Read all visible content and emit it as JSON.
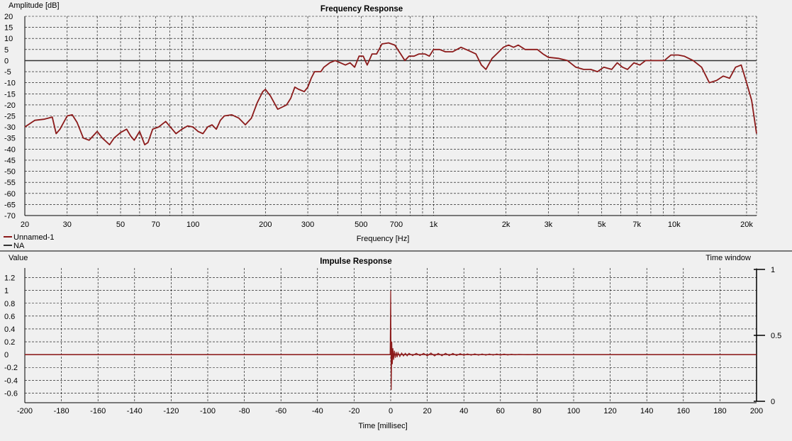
{
  "colors": {
    "background": "#f0f0f0",
    "series": "#8b1a1a",
    "grid": "#000000",
    "zero_line": "#333333"
  },
  "chart_data": [
    {
      "id": "frequency",
      "type": "line",
      "title": "Frequency Response",
      "xlabel": "Frequency [Hz]",
      "ylabel": "Amplitude [dB]",
      "x_scale": "log",
      "xlim": [
        20,
        22000
      ],
      "ylim": [
        -70,
        20
      ],
      "grid": true,
      "legend": {
        "placement": "bottom-left",
        "entries": [
          {
            "name": "Unnamed-1",
            "color": "#8b1a1a"
          },
          {
            "name": "NA",
            "color": "#333333"
          }
        ]
      },
      "x_ticks": [
        {
          "value": 20,
          "label": "20"
        },
        {
          "value": 30,
          "label": "30"
        },
        {
          "value": 50,
          "label": "50"
        },
        {
          "value": 70,
          "label": "70"
        },
        {
          "value": 100,
          "label": "100"
        },
        {
          "value": 200,
          "label": "200"
        },
        {
          "value": 300,
          "label": "300"
        },
        {
          "value": 500,
          "label": "500"
        },
        {
          "value": 700,
          "label": "700"
        },
        {
          "value": 1000,
          "label": "1k"
        },
        {
          "value": 2000,
          "label": "2k"
        },
        {
          "value": 3000,
          "label": "3k"
        },
        {
          "value": 5000,
          "label": "5k"
        },
        {
          "value": 7000,
          "label": "7k"
        },
        {
          "value": 10000,
          "label": "10k"
        },
        {
          "value": 20000,
          "label": "20k"
        }
      ],
      "y_ticks": [
        20,
        15,
        10,
        5,
        0,
        -5,
        -10,
        -15,
        -20,
        -25,
        -30,
        -35,
        -40,
        -45,
        -50,
        -55,
        -60,
        -65,
        -70
      ],
      "reference_line": 0,
      "series": [
        {
          "name": "Unnamed-1",
          "color": "#8b1a1a",
          "points": [
            [
              20,
              -30
            ],
            [
              22,
              -27
            ],
            [
              24,
              -26.5
            ],
            [
              26,
              -25.5
            ],
            [
              27,
              -33
            ],
            [
              28,
              -31
            ],
            [
              30,
              -25
            ],
            [
              31.5,
              -24.5
            ],
            [
              33,
              -28
            ],
            [
              35,
              -35
            ],
            [
              37,
              -36
            ],
            [
              40,
              -32
            ],
            [
              42,
              -35
            ],
            [
              45,
              -38
            ],
            [
              47,
              -35
            ],
            [
              50,
              -32.5
            ],
            [
              53,
              -31
            ],
            [
              55,
              -34
            ],
            [
              57,
              -36
            ],
            [
              60,
              -32
            ],
            [
              63,
              -38
            ],
            [
              65,
              -37
            ],
            [
              68,
              -31
            ],
            [
              72,
              -30
            ],
            [
              77,
              -27.5
            ],
            [
              82,
              -31
            ],
            [
              85,
              -33
            ],
            [
              90,
              -31
            ],
            [
              95,
              -29.5
            ],
            [
              100,
              -30
            ],
            [
              105,
              -32
            ],
            [
              110,
              -33
            ],
            [
              115,
              -30
            ],
            [
              120,
              -29
            ],
            [
              125,
              -31
            ],
            [
              130,
              -27
            ],
            [
              135,
              -25
            ],
            [
              145,
              -24.5
            ],
            [
              155,
              -26
            ],
            [
              165,
              -29
            ],
            [
              175,
              -26
            ],
            [
              185,
              -19
            ],
            [
              195,
              -14
            ],
            [
              200,
              -13
            ],
            [
              210,
              -16
            ],
            [
              225,
              -22
            ],
            [
              235,
              -21
            ],
            [
              245,
              -20
            ],
            [
              255,
              -17
            ],
            [
              265,
              -12
            ],
            [
              275,
              -13
            ],
            [
              290,
              -14
            ],
            [
              300,
              -12
            ],
            [
              310,
              -8
            ],
            [
              320,
              -5
            ],
            [
              340,
              -5
            ],
            [
              350,
              -3
            ],
            [
              370,
              -1
            ],
            [
              390,
              0
            ],
            [
              410,
              -1
            ],
            [
              430,
              -2
            ],
            [
              450,
              -1
            ],
            [
              470,
              -3
            ],
            [
              490,
              2
            ],
            [
              510,
              2
            ],
            [
              530,
              -2
            ],
            [
              555,
              3
            ],
            [
              580,
              3
            ],
            [
              610,
              7.5
            ],
            [
              650,
              8
            ],
            [
              690,
              7
            ],
            [
              730,
              3
            ],
            [
              760,
              0
            ],
            [
              790,
              2
            ],
            [
              830,
              2
            ],
            [
              870,
              3
            ],
            [
              920,
              3
            ],
            [
              960,
              2
            ],
            [
              1000,
              5
            ],
            [
              1060,
              5
            ],
            [
              1120,
              4
            ],
            [
              1200,
              4
            ],
            [
              1300,
              6
            ],
            [
              1400,
              4.5
            ],
            [
              1500,
              3
            ],
            [
              1580,
              -2
            ],
            [
              1650,
              -4
            ],
            [
              1750,
              1
            ],
            [
              1850,
              3.5
            ],
            [
              1950,
              6
            ],
            [
              2050,
              7
            ],
            [
              2150,
              6
            ],
            [
              2250,
              7
            ],
            [
              2400,
              5
            ],
            [
              2550,
              5
            ],
            [
              2700,
              5
            ],
            [
              2850,
              3
            ],
            [
              3000,
              1.5
            ],
            [
              3300,
              1
            ],
            [
              3600,
              0
            ],
            [
              3900,
              -3
            ],
            [
              4200,
              -4
            ],
            [
              4500,
              -4
            ],
            [
              4800,
              -5
            ],
            [
              5100,
              -3
            ],
            [
              5500,
              -4
            ],
            [
              5800,
              -1
            ],
            [
              6100,
              -3
            ],
            [
              6400,
              -4
            ],
            [
              6800,
              -1
            ],
            [
              7200,
              -2
            ],
            [
              7600,
              0
            ],
            [
              8000,
              0
            ],
            [
              8600,
              0
            ],
            [
              9100,
              0
            ],
            [
              9700,
              2.5
            ],
            [
              10400,
              2.5
            ],
            [
              11000,
              2
            ],
            [
              12000,
              0
            ],
            [
              13000,
              -3
            ],
            [
              14000,
              -10
            ],
            [
              15000,
              -9
            ],
            [
              16000,
              -7
            ],
            [
              17000,
              -8
            ],
            [
              18000,
              -3
            ],
            [
              19000,
              -2
            ],
            [
              20000,
              -10
            ],
            [
              21000,
              -18
            ],
            [
              22000,
              -33
            ]
          ]
        }
      ]
    },
    {
      "id": "impulse",
      "type": "line",
      "title": "Impulse Response",
      "xlabel": "Time [millisec]",
      "ylabel": "Value",
      "right_label": "Time window",
      "xlim": [
        -200,
        200
      ],
      "ylim": [
        -0.75,
        1.35
      ],
      "right_ylim": [
        0,
        1
      ],
      "grid": true,
      "x_ticks": [
        -200,
        -180,
        -160,
        -140,
        -120,
        -100,
        -80,
        -60,
        -40,
        -20,
        0,
        20,
        40,
        60,
        80,
        100,
        120,
        140,
        160,
        180,
        200
      ],
      "y_ticks": [
        {
          "value": 1.2,
          "label": "1.2"
        },
        {
          "value": 1,
          "label": "1"
        },
        {
          "value": 0.8,
          "label": "0.8"
        },
        {
          "value": 0.6,
          "label": "0.6"
        },
        {
          "value": 0.4,
          "label": "0.4"
        },
        {
          "value": 0.2,
          "label": "0.2"
        },
        {
          "value": 0,
          "label": "0"
        },
        {
          "value": -0.2,
          "label": "-0.2"
        },
        {
          "value": -0.4,
          "label": "-0.4"
        },
        {
          "value": -0.6,
          "label": "-0.6"
        }
      ],
      "right_y_ticks": [
        {
          "value": 1,
          "label": "1"
        },
        {
          "value": 0.5,
          "label": "0.5"
        },
        {
          "value": 0,
          "label": "0"
        }
      ],
      "baseline": 0,
      "series": [
        {
          "name": "Unnamed-1",
          "color": "#8b1a1a",
          "points": [
            [
              -200,
              0
            ],
            [
              -0.3,
              0
            ],
            [
              0,
              1.0
            ],
            [
              0.3,
              -0.55
            ],
            [
              0.6,
              0.2
            ],
            [
              0.9,
              -0.15
            ],
            [
              1.2,
              0.1
            ],
            [
              1.6,
              -0.08
            ],
            [
              2,
              0.06
            ],
            [
              2.5,
              -0.05
            ],
            [
              3,
              0.04
            ],
            [
              3.5,
              -0.04
            ],
            [
              4,
              0.03
            ],
            [
              5,
              -0.03
            ],
            [
              6,
              0.025
            ],
            [
              7,
              -0.02
            ],
            [
              8,
              0.02
            ],
            [
              9,
              -0.02
            ],
            [
              10,
              0.02
            ],
            [
              12,
              -0.015
            ],
            [
              14,
              0.02
            ],
            [
              16,
              -0.015
            ],
            [
              18,
              0.02
            ],
            [
              20,
              -0.02
            ],
            [
              22,
              0.025
            ],
            [
              24,
              -0.02
            ],
            [
              26,
              0.02
            ],
            [
              28,
              -0.018
            ],
            [
              30,
              0.02
            ],
            [
              32,
              -0.015
            ],
            [
              34,
              0.018
            ],
            [
              36,
              -0.015
            ],
            [
              38,
              0.015
            ],
            [
              40,
              -0.012
            ],
            [
              42,
              0.012
            ],
            [
              44,
              -0.01
            ],
            [
              46,
              0.012
            ],
            [
              48,
              -0.01
            ],
            [
              50,
              0.01
            ],
            [
              52,
              -0.01
            ],
            [
              54,
              0.01
            ],
            [
              56,
              -0.008
            ],
            [
              58,
              0.01
            ],
            [
              60,
              -0.01
            ],
            [
              62,
              0.008
            ],
            [
              64,
              -0.006
            ],
            [
              66,
              0.006
            ],
            [
              68,
              -0.004
            ],
            [
              70,
              0.004
            ],
            [
              75,
              -0.003
            ],
            [
              78,
              0.002
            ],
            [
              80,
              0
            ],
            [
              200,
              0
            ]
          ]
        }
      ]
    }
  ]
}
